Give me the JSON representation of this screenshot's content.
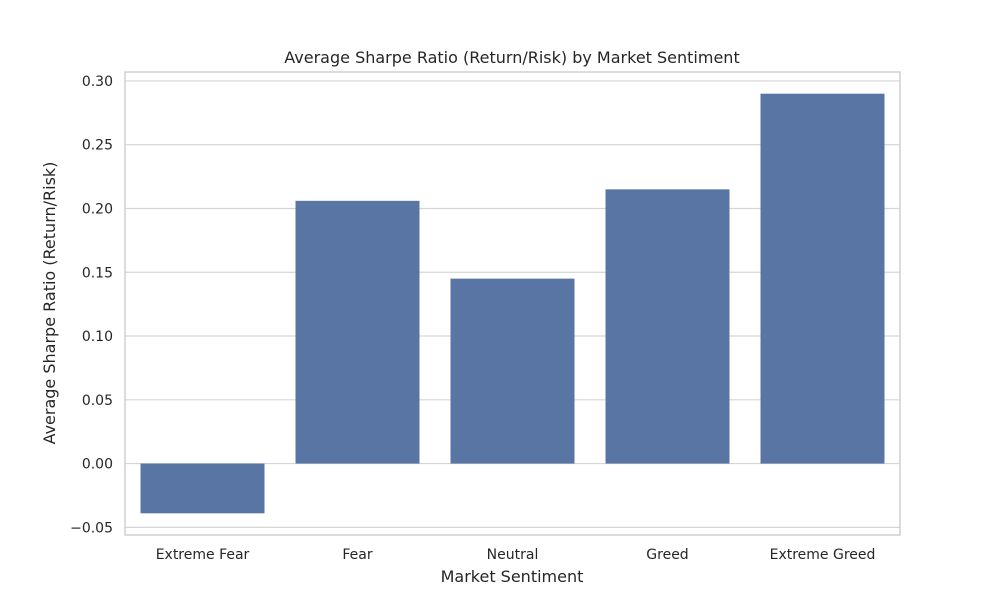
{
  "chart_data": {
    "type": "bar",
    "title": "Average Sharpe Ratio (Return/Risk) by Market Sentiment",
    "xlabel": "Market Sentiment",
    "ylabel": "Average Sharpe Ratio (Return/Risk)",
    "categories": [
      "Extreme Fear",
      "Fear",
      "Neutral",
      "Greed",
      "Extreme Greed"
    ],
    "values": [
      -0.039,
      0.206,
      0.145,
      0.215,
      0.29
    ],
    "ylim": [
      -0.056,
      0.307
    ],
    "yticks": [
      -0.05,
      0.0,
      0.05,
      0.1,
      0.15,
      0.2,
      0.25,
      0.3
    ],
    "ytick_labels": [
      "−0.05",
      "0.00",
      "0.05",
      "0.10",
      "0.15",
      "0.20",
      "0.25",
      "0.30"
    ],
    "grid": true,
    "bar_color": "#5975a4",
    "grid_color": "#d5d5d5",
    "frame_color": "#d0d0d0"
  }
}
